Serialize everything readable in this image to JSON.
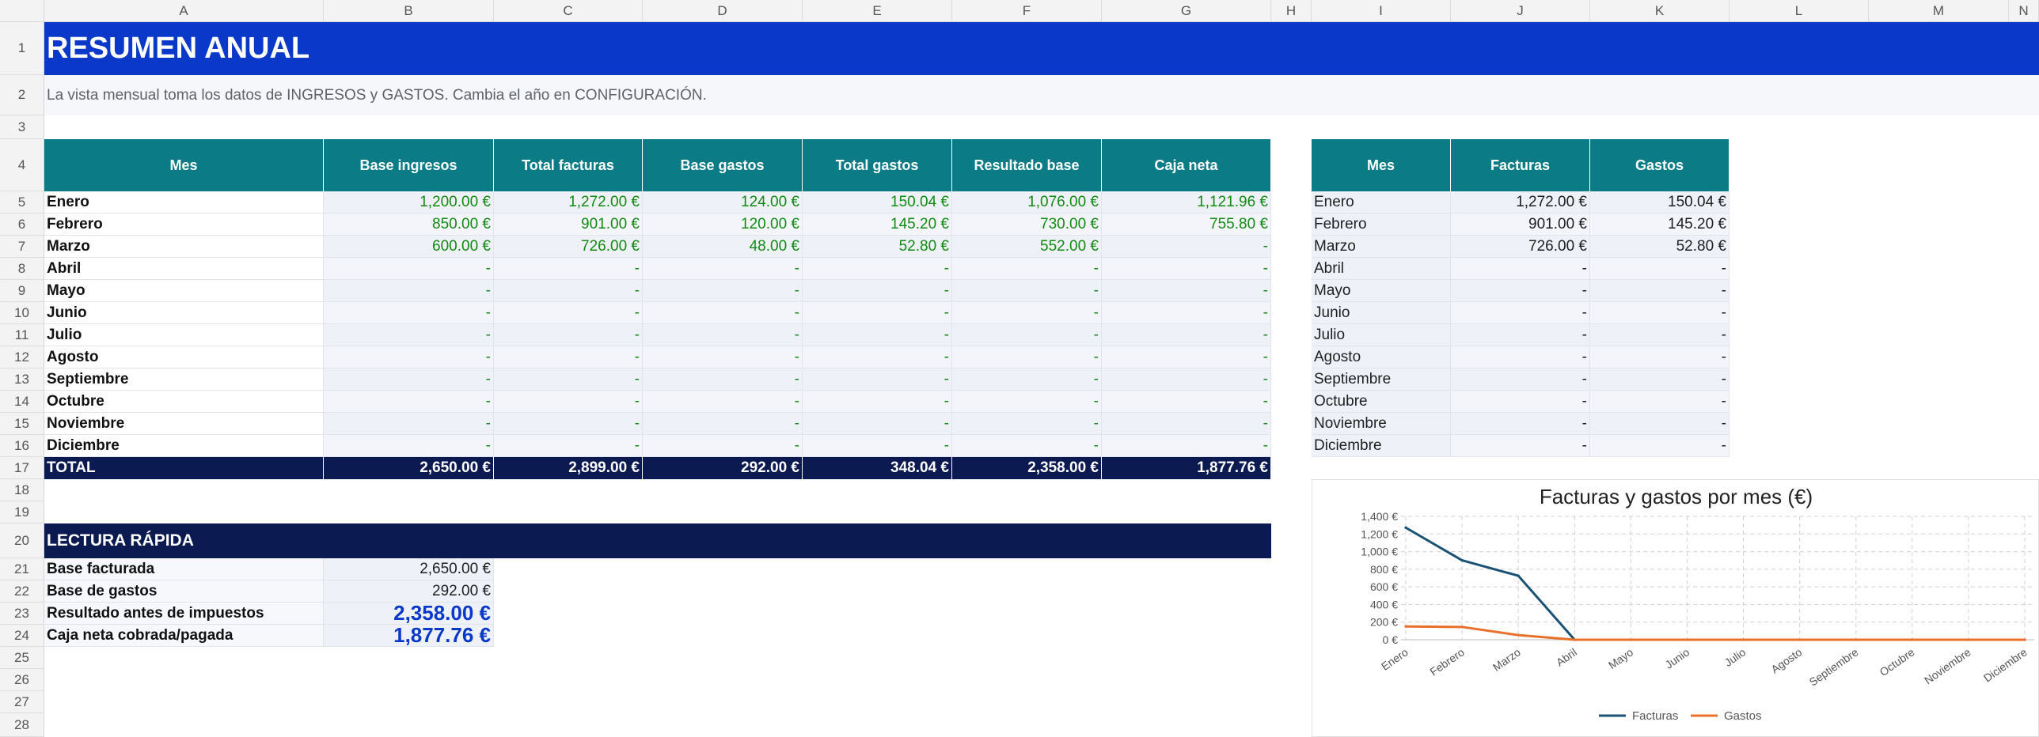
{
  "columns": [
    "A",
    "B",
    "C",
    "D",
    "E",
    "F",
    "G",
    "H",
    "I",
    "J",
    "K",
    "L",
    "M",
    "N"
  ],
  "rows": [
    "1",
    "2",
    "3",
    "4",
    "5",
    "6",
    "7",
    "8",
    "9",
    "10",
    "11",
    "12",
    "13",
    "14",
    "15",
    "16",
    "17",
    "18",
    "19",
    "20",
    "21",
    "22",
    "23",
    "24",
    "25",
    "26",
    "27",
    "28"
  ],
  "title": "RESUMEN ANUAL",
  "subtitle": "La vista mensual toma los datos de INGRESOS y GASTOS. Cambia el año en CONFIGURACIÓN.",
  "main_table": {
    "headers": [
      "Mes",
      "Base ingresos",
      "Total facturas",
      "Base gastos",
      "Total gastos",
      "Resultado base",
      "Caja neta"
    ],
    "rows": [
      [
        "Enero",
        "1,200.00 €",
        "1,272.00 €",
        "124.00 €",
        "150.04 €",
        "1,076.00 €",
        "1,121.96 €"
      ],
      [
        "Febrero",
        "850.00 €",
        "901.00 €",
        "120.00 €",
        "145.20 €",
        "730.00 €",
        "755.80 €"
      ],
      [
        "Marzo",
        "600.00 €",
        "726.00 €",
        "48.00 €",
        "52.80 €",
        "552.00 €",
        "-"
      ],
      [
        "Abril",
        "-",
        "-",
        "-",
        "-",
        "-",
        "-"
      ],
      [
        "Mayo",
        "-",
        "-",
        "-",
        "-",
        "-",
        "-"
      ],
      [
        "Junio",
        "-",
        "-",
        "-",
        "-",
        "-",
        "-"
      ],
      [
        "Julio",
        "-",
        "-",
        "-",
        "-",
        "-",
        "-"
      ],
      [
        "Agosto",
        "-",
        "-",
        "-",
        "-",
        "-",
        "-"
      ],
      [
        "Septiembre",
        "-",
        "-",
        "-",
        "-",
        "-",
        "-"
      ],
      [
        "Octubre",
        "-",
        "-",
        "-",
        "-",
        "-",
        "-"
      ],
      [
        "Noviembre",
        "-",
        "-",
        "-",
        "-",
        "-",
        "-"
      ],
      [
        "Diciembre",
        "-",
        "-",
        "-",
        "-",
        "-",
        "-"
      ]
    ],
    "total": [
      "TOTAL",
      "2,650.00 €",
      "2,899.00 €",
      "292.00 €",
      "348.04 €",
      "2,358.00 €",
      "1,877.76 €"
    ]
  },
  "side_table": {
    "headers": [
      "Mes",
      "Facturas",
      "Gastos"
    ],
    "rows": [
      [
        "Enero",
        "1,272.00 €",
        "150.04 €"
      ],
      [
        "Febrero",
        "901.00 €",
        "145.20 €"
      ],
      [
        "Marzo",
        "726.00 €",
        "52.80 €"
      ],
      [
        "Abril",
        "-",
        "-"
      ],
      [
        "Mayo",
        "-",
        "-"
      ],
      [
        "Junio",
        "-",
        "-"
      ],
      [
        "Julio",
        "-",
        "-"
      ],
      [
        "Agosto",
        "-",
        "-"
      ],
      [
        "Septiembre",
        "-",
        "-"
      ],
      [
        "Octubre",
        "-",
        "-"
      ],
      [
        "Noviembre",
        "-",
        "-"
      ],
      [
        "Diciembre",
        "-",
        "-"
      ]
    ]
  },
  "quick": {
    "heading": "LECTURA RÁPIDA",
    "items": [
      {
        "label": "Base facturada",
        "value": "2,650.00 €"
      },
      {
        "label": "Base de gastos",
        "value": "292.00 €"
      },
      {
        "label": "Resultado antes de impuestos",
        "value": "2,358.00 €"
      },
      {
        "label": "Caja neta cobrada/pagada",
        "value": "1,877.76 €"
      }
    ]
  },
  "colors": {
    "title_band": "#0a38c9",
    "header_teal": "#0b7b86",
    "total_navy": "#0c1a52",
    "positive_green": "#128a12",
    "highlight_blue": "#0a38c9",
    "facturas_line": "#1a5276",
    "gastos_line": "#e8702a"
  },
  "chart_data": {
    "type": "line",
    "title": "Facturas y gastos por mes (€)",
    "categories": [
      "Enero",
      "Febrero",
      "Marzo",
      "Abril",
      "Mayo",
      "Junio",
      "Julio",
      "Agosto",
      "Septiembre",
      "Octubre",
      "Noviembre",
      "Diciembre"
    ],
    "series": [
      {
        "name": "Facturas",
        "color": "#1a5276",
        "values": [
          1272,
          901,
          726,
          0,
          0,
          0,
          0,
          0,
          0,
          0,
          0,
          0
        ]
      },
      {
        "name": "Gastos",
        "color": "#e8702a",
        "values": [
          150.04,
          145.2,
          52.8,
          0,
          0,
          0,
          0,
          0,
          0,
          0,
          0,
          0
        ]
      }
    ],
    "yticks": [
      "0 €",
      "200 €",
      "400 €",
      "600 €",
      "800 €",
      "1,000 €",
      "1,200 €",
      "1,400 €"
    ],
    "ylim": [
      0,
      1400
    ],
    "grid": true,
    "legend": "bottom"
  }
}
